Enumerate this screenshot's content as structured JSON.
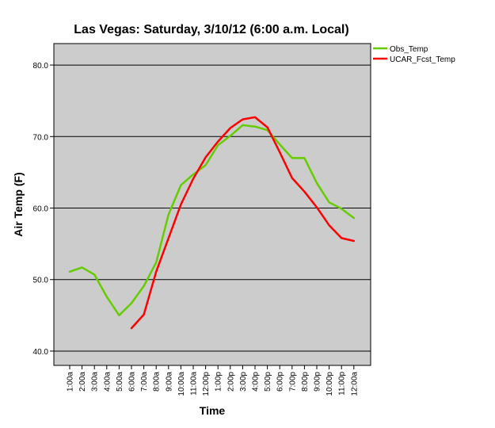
{
  "chart_data": {
    "type": "line",
    "title": "Las Vegas: Saturday, 3/10/12 (6:00 a.m. Local)",
    "xlabel": "Time",
    "ylabel": "Air Temp (F)",
    "categories": [
      "1:00a",
      "2:00a",
      "3:00a",
      "4:00a",
      "5:00a",
      "6:00a",
      "7:00a",
      "8:00a",
      "9:00a",
      "10:00a",
      "11:00a",
      "12:00p",
      "1:00p",
      "2:00p",
      "3:00p",
      "4:00p",
      "5:00p",
      "6:00p",
      "7:00p",
      "8:00p",
      "9:00p",
      "10:00p",
      "11:00p",
      "12:00a"
    ],
    "ylim": [
      38,
      83
    ],
    "yticks": [
      "40.0",
      "50.0",
      "60.0",
      "70.0",
      "80.0"
    ],
    "yticks_values": [
      40,
      50,
      60,
      70,
      80
    ],
    "grid": "horizontal",
    "legend_position": "top-right outside plot",
    "plot_background": "#cccccc",
    "series": [
      {
        "name": "Obs_Temp",
        "color": "#66cc00",
        "values": [
          51.1,
          51.7,
          50.7,
          47.6,
          45.0,
          46.7,
          49.1,
          52.4,
          59.1,
          63.2,
          64.7,
          66.0,
          68.8,
          70.1,
          71.6,
          71.4,
          70.9,
          68.9,
          67.0,
          67.0,
          63.5,
          60.8,
          59.9,
          58.6
        ]
      },
      {
        "name": "UCAR_Fcst_Temp",
        "color": "#ff0000",
        "values": [
          null,
          null,
          null,
          null,
          null,
          43.2,
          45.1,
          51.1,
          55.8,
          60.5,
          64.1,
          67.1,
          69.3,
          71.2,
          72.4,
          72.7,
          71.3,
          67.8,
          64.2,
          62.3,
          60.1,
          57.6,
          55.8,
          55.4
        ]
      }
    ]
  }
}
